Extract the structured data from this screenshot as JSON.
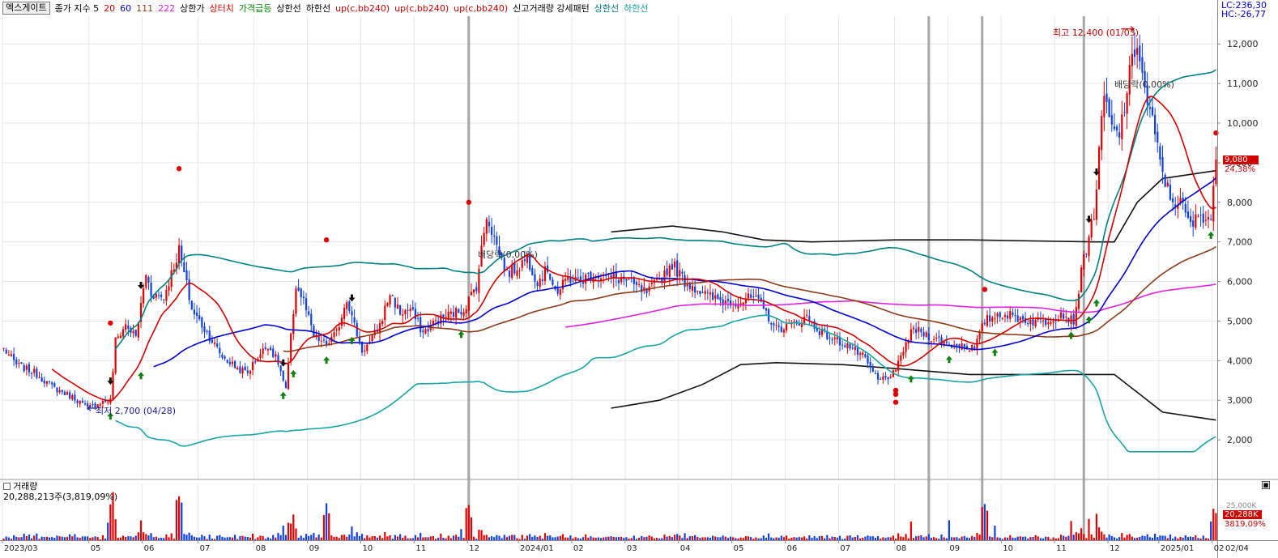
{
  "stock": {
    "name": "엑스게이트"
  },
  "legend": {
    "price_label": "종가 지수 5",
    "ma": [
      {
        "label": "20",
        "color": "#d00000"
      },
      {
        "label": "60",
        "color": "#0000cc"
      },
      {
        "label": "111",
        "color": "#8b3a1a"
      },
      {
        "label": "222",
        "color": "#dd22dd"
      }
    ],
    "items": [
      {
        "label": "상한가",
        "color": "#000000"
      },
      {
        "label": "상터치",
        "color": "#d00000"
      },
      {
        "label": "가격급등",
        "color": "#008800"
      },
      {
        "label": "상한선",
        "color": "#000000"
      },
      {
        "label": "하한선",
        "color": "#000000"
      },
      {
        "label": "up(c,bb240)",
        "color": "#c00000"
      },
      {
        "label": "up(c,bb240)",
        "color": "#c00000"
      },
      {
        "label": "up(c,bb240)",
        "color": "#c00000"
      },
      {
        "label": "신고거래량 강세패턴",
        "color": "#000000"
      },
      {
        "label": "상한선",
        "color": "#008080"
      },
      {
        "label": "하한선",
        "color": "#1aa3a3"
      }
    ]
  },
  "corner": {
    "lc": "LC:236,30",
    "hc": "HC:-26,77"
  },
  "price_axis": {
    "ticks": [
      "12,000",
      "11,000",
      "10,000",
      "9,000",
      "8,000",
      "7,000",
      "6,000",
      "5,000",
      "4,000",
      "3,000",
      "2,000"
    ]
  },
  "current": {
    "price": "9,080",
    "change": "24,38%"
  },
  "annotations": {
    "high": "최고 12,400 (01/03)",
    "low": "최저 2,700 (04/28)",
    "ex_div_1": "배당락(0,00%)",
    "ex_div_2": "배당락(0,00%)"
  },
  "volume": {
    "title": "거래량",
    "summary": "20,288,213주(3,819,09%)",
    "axis_tick": "25,000K",
    "current_value": "20,288K",
    "current_pct": "3819,09%"
  },
  "x_axis": {
    "labels": [
      "2023/03",
      "05",
      "06",
      "07",
      "08",
      "09",
      "10",
      "11",
      "12",
      "2024/01",
      "02",
      "03",
      "04",
      "05",
      "06",
      "07",
      "08",
      "09",
      "10",
      "11",
      "12",
      "2025/01",
      "02"
    ],
    "extra_label": "02/04"
  },
  "chart_data": {
    "type": "candlestick",
    "ylim": [
      1000,
      12700
    ],
    "volume_ylim": [
      0,
      37000
    ],
    "volume_unit": "K",
    "months": [
      {
        "label": "2023/03",
        "index": 0
      },
      {
        "label": "05",
        "index": 34
      },
      {
        "label": "06",
        "index": 55
      },
      {
        "label": "07",
        "index": 77
      },
      {
        "label": "08",
        "index": 99
      },
      {
        "label": "09",
        "index": 120
      },
      {
        "label": "10",
        "index": 141
      },
      {
        "label": "11",
        "index": 162
      },
      {
        "label": "12",
        "index": 183
      },
      {
        "label": "2024/01",
        "index": 203
      },
      {
        "label": "02",
        "index": 224
      },
      {
        "label": "03",
        "index": 245
      },
      {
        "label": "04",
        "index": 266
      },
      {
        "label": "05",
        "index": 287
      },
      {
        "label": "06",
        "index": 308
      },
      {
        "label": "07",
        "index": 329
      },
      {
        "label": "08",
        "index": 351
      },
      {
        "label": "09",
        "index": 372
      },
      {
        "label": "10",
        "index": 393
      },
      {
        "label": "11",
        "index": 414
      },
      {
        "label": "12",
        "index": 435
      },
      {
        "label": "2025/01",
        "index": 455
      },
      {
        "label": "02",
        "index": 476
      }
    ],
    "n_days": 478,
    "anchors": [
      [
        0,
        4300
      ],
      [
        5,
        3900
      ],
      [
        12,
        3700
      ],
      [
        20,
        3300
      ],
      [
        28,
        3050
      ],
      [
        33,
        2800
      ],
      [
        38,
        2950
      ],
      [
        42,
        3000
      ],
      [
        44,
        4500
      ],
      [
        48,
        4900
      ],
      [
        52,
        4600
      ],
      [
        56,
        6200
      ],
      [
        58,
        5700
      ],
      [
        63,
        5600
      ],
      [
        69,
        6800
      ],
      [
        74,
        5300
      ],
      [
        80,
        4700
      ],
      [
        86,
        4100
      ],
      [
        92,
        3800
      ],
      [
        96,
        3700
      ],
      [
        100,
        4100
      ],
      [
        104,
        4400
      ],
      [
        108,
        3950
      ],
      [
        111,
        3250
      ],
      [
        115,
        5900
      ],
      [
        118,
        5500
      ],
      [
        122,
        4600
      ],
      [
        127,
        4400
      ],
      [
        131,
        4700
      ],
      [
        135,
        5600
      ],
      [
        137,
        5100
      ],
      [
        141,
        4250
      ],
      [
        144,
        4450
      ],
      [
        148,
        4900
      ],
      [
        152,
        5700
      ],
      [
        156,
        5200
      ],
      [
        160,
        5300
      ],
      [
        165,
        4700
      ],
      [
        170,
        5000
      ],
      [
        175,
        5150
      ],
      [
        181,
        5300
      ],
      [
        186,
        5900
      ],
      [
        190,
        7700
      ],
      [
        194,
        6900
      ],
      [
        198,
        6200
      ],
      [
        202,
        6350
      ],
      [
        206,
        6600
      ],
      [
        210,
        6000
      ],
      [
        214,
        6300
      ],
      [
        218,
        5700
      ],
      [
        222,
        6100
      ],
      [
        226,
        6000
      ],
      [
        232,
        6200
      ],
      [
        238,
        6100
      ],
      [
        244,
        6050
      ],
      [
        248,
        5900
      ],
      [
        253,
        5700
      ],
      [
        258,
        6050
      ],
      [
        263,
        6450
      ],
      [
        268,
        6000
      ],
      [
        272,
        5850
      ],
      [
        278,
        5600
      ],
      [
        283,
        5500
      ],
      [
        290,
        5500
      ],
      [
        295,
        5600
      ],
      [
        299,
        5300
      ],
      [
        304,
        4800
      ],
      [
        310,
        4900
      ],
      [
        316,
        5100
      ],
      [
        320,
        4800
      ],
      [
        326,
        4550
      ],
      [
        332,
        4400
      ],
      [
        338,
        4100
      ],
      [
        344,
        3500
      ],
      [
        348,
        3600
      ],
      [
        351,
        3700
      ],
      [
        354,
        4300
      ],
      [
        358,
        4800
      ],
      [
        365,
        4600
      ],
      [
        372,
        4400
      ],
      [
        377,
        4400
      ],
      [
        382,
        4300
      ],
      [
        386,
        5000
      ],
      [
        392,
        5200
      ],
      [
        398,
        5100
      ],
      [
        404,
        5000
      ],
      [
        410,
        5000
      ],
      [
        416,
        5200
      ],
      [
        421,
        5000
      ],
      [
        425,
        6600
      ],
      [
        429,
        7700
      ],
      [
        433,
        10700
      ],
      [
        436,
        9800
      ],
      [
        439,
        9700
      ],
      [
        443,
        11200
      ],
      [
        446,
        12100
      ],
      [
        449,
        10800
      ],
      [
        452,
        10000
      ],
      [
        455,
        9000
      ],
      [
        459,
        8100
      ],
      [
        463,
        8000
      ],
      [
        467,
        7400
      ],
      [
        471,
        7700
      ],
      [
        475,
        7600
      ],
      [
        477,
        9080
      ]
    ],
    "overlays": [
      {
        "name": "20",
        "color": "#d00000"
      },
      {
        "name": "60",
        "color": "#0000cc"
      },
      {
        "name": "111",
        "color": "#8b3a1a"
      },
      {
        "name": "222",
        "color": "#dd22dd"
      },
      {
        "name": "상한선",
        "color": "#008080"
      },
      {
        "name": "하한선",
        "color": "#1aa3a3"
      }
    ],
    "channel_black": {
      "upper": [
        [
          239,
          7250
        ],
        [
          263,
          7400
        ],
        [
          283,
          7250
        ],
        [
          299,
          7050
        ],
        [
          318,
          7000
        ],
        [
          351,
          7050
        ],
        [
          380,
          7050
        ],
        [
          430,
          7000
        ],
        [
          437,
          7000
        ],
        [
          446,
          8000
        ],
        [
          456,
          8600
        ],
        [
          477,
          8800
        ]
      ],
      "lower": [
        [
          239,
          2800
        ],
        [
          258,
          3000
        ],
        [
          275,
          3400
        ],
        [
          290,
          3900
        ],
        [
          304,
          3950
        ],
        [
          330,
          3900
        ],
        [
          351,
          3800
        ],
        [
          380,
          3650
        ],
        [
          437,
          3650
        ],
        [
          446,
          3200
        ],
        [
          456,
          2700
        ],
        [
          477,
          2500
        ]
      ]
    },
    "vertical_marks": [
      183,
      364,
      385,
      425
    ],
    "markers": {
      "up_arrows": [
        42,
        54,
        110,
        114,
        127,
        137,
        180,
        357,
        372,
        390,
        420,
        427,
        430,
        475
      ],
      "down_arrows": [
        42,
        54,
        110,
        137,
        427,
        430
      ],
      "red_dots": [
        [
          42,
          4950
        ],
        [
          69,
          8850
        ],
        [
          127,
          7050
        ],
        [
          183,
          8000
        ],
        [
          386,
          5800
        ],
        [
          477,
          9750
        ]
      ],
      "red_dots_below": [
        [
          351,
          3250
        ],
        [
          351,
          3150
        ],
        [
          351,
          2950
        ]
      ]
    }
  }
}
